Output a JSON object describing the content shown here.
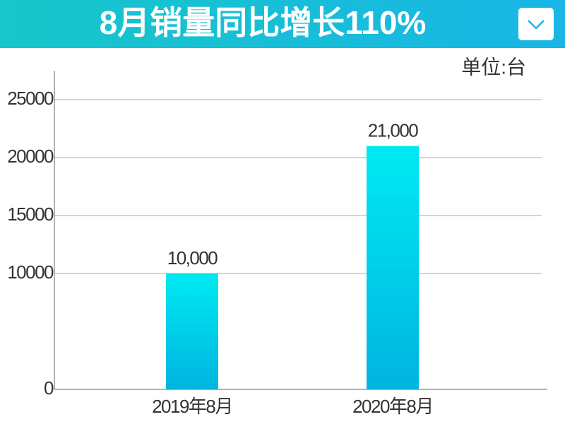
{
  "chart_data": {
    "type": "bar",
    "title": "8月销量同比增长110%",
    "unit": "单位:台",
    "categories": [
      "2019年8月",
      "2020年8月"
    ],
    "values": [
      10000,
      21000
    ],
    "value_labels": [
      "10,000",
      "21,000"
    ],
    "color": "#00c8e8",
    "ylim": [
      0,
      27500
    ],
    "yticks": [
      0,
      10000,
      15000,
      20000,
      25000
    ],
    "grid": true
  }
}
